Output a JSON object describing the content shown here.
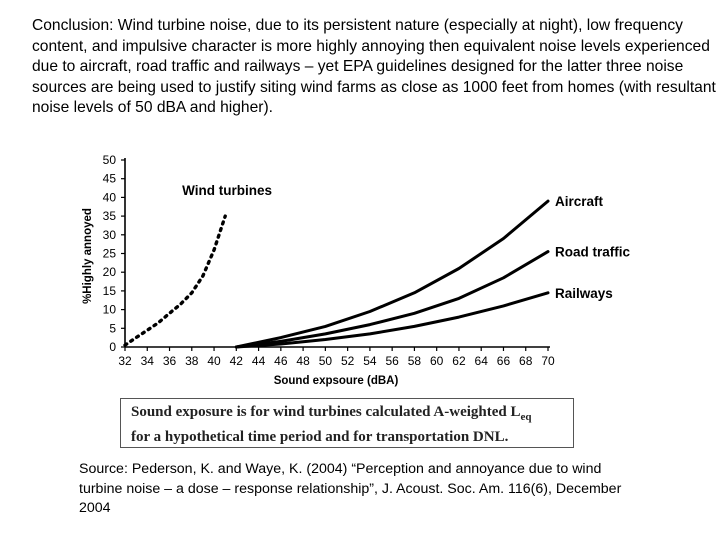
{
  "conclusion": "Conclusion: Wind turbine noise, due to its persistent nature (especially at night), low frequency content, and impulsive character is more highly annoying then equivalent noise levels experienced due to aircraft, road traffic and railways – yet EPA guidelines designed for the latter three noise sources are being used to justify siting wind farms as close as 1000 feet from homes (with resultant noise levels of 50 dBA and higher).",
  "chart_data": {
    "type": "line",
    "title": "",
    "xlabel": "Sound expsoure (dBA)",
    "ylabel": "%Highly annoyed",
    "xlim": [
      32,
      70
    ],
    "ylim": [
      0,
      50
    ],
    "x_ticks": [
      32,
      34,
      36,
      38,
      40,
      42,
      44,
      46,
      48,
      50,
      52,
      54,
      56,
      58,
      60,
      62,
      64,
      66,
      68,
      70
    ],
    "y_ticks": [
      0,
      5,
      10,
      15,
      20,
      25,
      30,
      35,
      40,
      45,
      50
    ],
    "grid": false,
    "series": [
      {
        "name": "Wind turbines",
        "style": "dotted",
        "x": [
          32,
          33,
          34,
          35,
          36,
          37,
          38,
          39,
          40,
          41
        ],
        "y": [
          0.5,
          2.5,
          4.5,
          6.5,
          9,
          11.5,
          14.5,
          19,
          26,
          35
        ]
      },
      {
        "name": "Aircraft",
        "style": "solid",
        "x": [
          42,
          46,
          50,
          54,
          58,
          62,
          66,
          70
        ],
        "y": [
          0,
          2.5,
          5.5,
          9.5,
          14.5,
          21,
          29,
          39
        ]
      },
      {
        "name": "Road traffic",
        "style": "solid",
        "x": [
          42,
          46,
          50,
          54,
          58,
          62,
          66,
          70
        ],
        "y": [
          0,
          1.5,
          3.5,
          6,
          9,
          13,
          18.5,
          25.5
        ]
      },
      {
        "name": "Railways",
        "style": "solid",
        "x": [
          42,
          46,
          50,
          54,
          58,
          62,
          66,
          70
        ],
        "y": [
          0,
          0.8,
          2,
          3.5,
          5.5,
          8,
          11,
          14.5
        ]
      }
    ]
  },
  "note": {
    "line1": "Sound exposure is for wind turbines calculated A-weighted L",
    "line1_sub": "eq",
    "line2": "for a hypothetical time period and for transportation DNL."
  },
  "source": "Source: Pederson, K. and Waye, K. (2004) “Perception and annoyance due to wind turbine noise – a dose – response relationship”, J. Acoust. Soc. Am. 116(6), December 2004"
}
